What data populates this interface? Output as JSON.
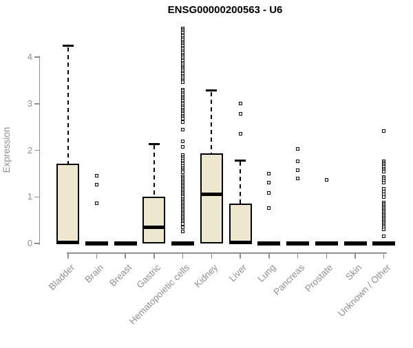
{
  "title": "ENSG00000200563 - U6",
  "colors": {
    "box_fill": "#ede8cd",
    "box_border": "#000000",
    "axis": "#8f8f8f",
    "label_text": "#909090",
    "title_text": "#000000",
    "outlier_fill": "#ffffff"
  },
  "chart_data": {
    "type": "boxplot",
    "title": "ENSG00000200563 - U6",
    "xlabel": "",
    "ylabel": "Expression",
    "ylim": [
      0,
      4.7
    ],
    "yticks": [
      0,
      1,
      2,
      3,
      4
    ],
    "grid": false,
    "legend": "none",
    "categories": [
      "Bladder",
      "Brain",
      "Breast",
      "Gastric",
      "Hematopoietic cells",
      "Kidney",
      "Liver",
      "Lung",
      "Pancreas",
      "Prostate",
      "Skin",
      "Unknown / Other"
    ],
    "series": [
      {
        "name": "Bladder",
        "q1": 0,
        "median": 0.02,
        "q3": 1.72,
        "whisker_low": 0,
        "whisker_high": 4.24,
        "outliers": []
      },
      {
        "name": "Brain",
        "q1": 0,
        "median": 0,
        "q3": 0,
        "whisker_low": 0,
        "whisker_high": 0,
        "outliers": [
          1.45,
          1.26,
          0.86
        ]
      },
      {
        "name": "Breast",
        "q1": 0,
        "median": 0,
        "q3": 0,
        "whisker_low": 0,
        "whisker_high": 0,
        "outliers": []
      },
      {
        "name": "Gastric",
        "q1": 0,
        "median": 0.34,
        "q3": 1.01,
        "whisker_low": 0,
        "whisker_high": 2.14,
        "outliers": []
      },
      {
        "name": "Hematopoietic cells",
        "q1": 0,
        "median": 0,
        "q3": 0,
        "whisker_low": 0,
        "whisker_high": 0,
        "outliers": [
          4.62,
          4.59,
          4.55,
          4.52,
          4.48,
          4.45,
          4.41,
          4.38,
          4.34,
          4.31,
          4.27,
          4.24,
          4.2,
          4.17,
          4.13,
          4.1,
          4.06,
          4.02,
          3.99,
          3.95,
          3.92,
          3.88,
          3.85,
          3.81,
          3.78,
          3.74,
          3.71,
          3.67,
          3.64,
          3.6,
          3.57,
          3.53,
          3.5,
          3.46,
          3.3,
          3.27,
          3.23,
          3.2,
          3.16,
          3.13,
          3.09,
          3.06,
          3.02,
          2.99,
          2.95,
          2.92,
          2.88,
          2.85,
          2.81,
          2.78,
          2.74,
          2.71,
          2.68,
          2.6,
          2.45,
          2.2,
          2.07,
          1.9,
          1.86,
          1.82,
          1.78,
          1.74,
          1.7,
          1.66,
          1.62,
          1.59,
          1.56,
          1.53,
          1.44,
          1.41,
          1.38,
          1.35,
          1.32,
          1.29,
          1.26,
          1.23,
          1.2,
          1.17,
          1.14,
          1.11,
          1.08,
          1.05,
          1.02,
          0.99,
          0.96,
          0.93,
          0.9,
          0.87,
          0.84,
          0.81,
          0.78,
          0.75,
          0.72,
          0.69,
          0.66,
          0.63,
          0.6,
          0.57,
          0.54,
          0.51,
          0.48,
          0.45,
          0.42,
          0.35,
          0.26
        ]
      },
      {
        "name": "Kidney",
        "q1": 0,
        "median": 1.06,
        "q3": 1.93,
        "whisker_low": 0,
        "whisker_high": 3.28,
        "outliers": []
      },
      {
        "name": "Liver",
        "q1": 0,
        "median": 0.02,
        "q3": 0.85,
        "whisker_low": 0,
        "whisker_high": 1.78,
        "outliers": [
          3.0,
          2.79,
          2.35
        ]
      },
      {
        "name": "Lung",
        "q1": 0,
        "median": 0,
        "q3": 0,
        "whisker_low": 0,
        "whisker_high": 0,
        "outliers": [
          1.5,
          1.3,
          1.08,
          0.76
        ]
      },
      {
        "name": "Pancreas",
        "q1": 0,
        "median": 0,
        "q3": 0,
        "whisker_low": 0,
        "whisker_high": 0,
        "outliers": [
          2.03,
          1.77,
          1.57,
          1.4
        ]
      },
      {
        "name": "Prostate",
        "q1": 0,
        "median": 0,
        "q3": 0,
        "whisker_low": 0,
        "whisker_high": 0,
        "outliers": [
          1.37
        ]
      },
      {
        "name": "Skin",
        "q1": 0,
        "median": 0,
        "q3": 0,
        "whisker_low": 0,
        "whisker_high": 0,
        "outliers": []
      },
      {
        "name": "Unknown / Other",
        "q1": 0,
        "median": 0,
        "q3": 0,
        "whisker_low": 0,
        "whisker_high": 0,
        "outliers": [
          2.42,
          1.76,
          1.73,
          1.7,
          1.67,
          1.64,
          1.61,
          1.58,
          1.55,
          1.42,
          1.39,
          1.35,
          1.31,
          1.17,
          1.12,
          1.06,
          1.0,
          0.88,
          0.85,
          0.82,
          0.79,
          0.76,
          0.73,
          0.7,
          0.67,
          0.64,
          0.61,
          0.58,
          0.55,
          0.52,
          0.49,
          0.46,
          0.43,
          0.4,
          0.37,
          0.34,
          0.31,
          0.16
        ]
      }
    ]
  }
}
